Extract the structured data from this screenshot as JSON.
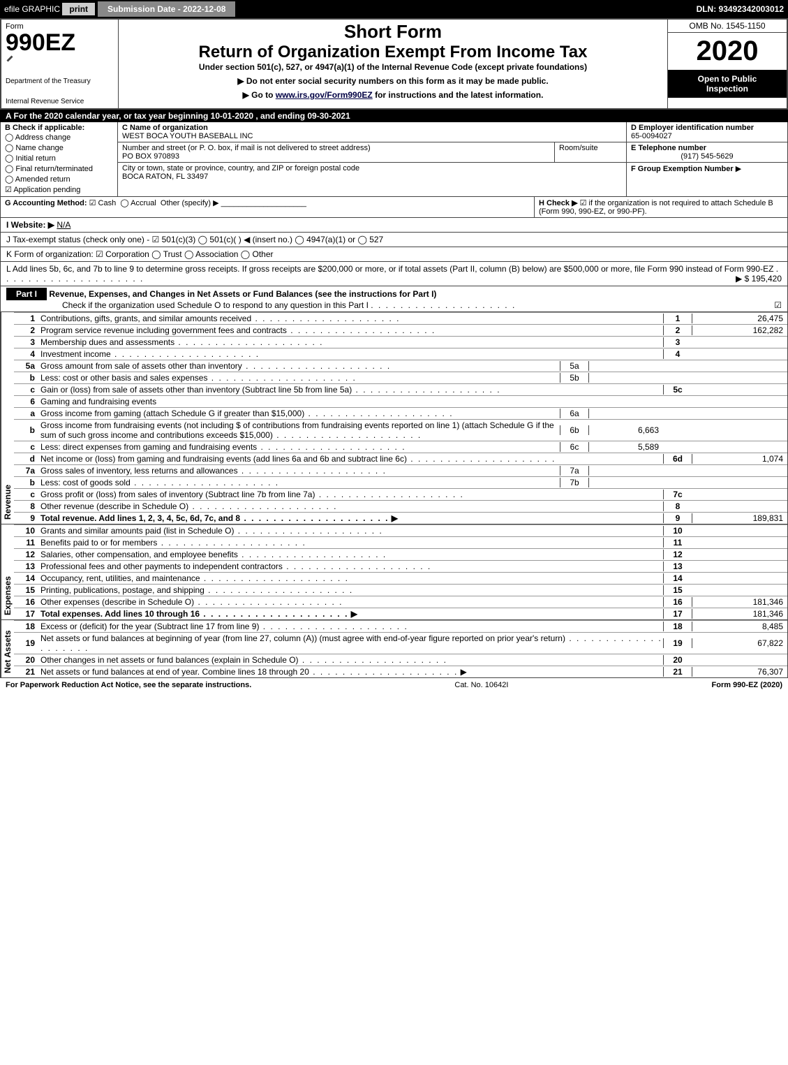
{
  "topbar": {
    "efile": "efile GRAPHIC",
    "print": "print",
    "sub_date_label": "Submission Date - 2022-12-08",
    "dln": "DLN: 93492342003012"
  },
  "header": {
    "form_word": "Form",
    "form_num": "990EZ",
    "irs1": "Department of the Treasury",
    "irs2": "Internal Revenue Service",
    "short_form": "Short Form",
    "main_title": "Return of Organization Exempt From Income Tax",
    "sub1": "Under section 501(c), 527, or 4947(a)(1) of the Internal Revenue Code (except private foundations)",
    "note1": "▶ Do not enter social security numbers on this form as it may be made public.",
    "note2_pre": "▶ Go to ",
    "note2_link": "www.irs.gov/Form990EZ",
    "note2_post": " for instructions and the latest information.",
    "omb": "OMB No. 1545-1150",
    "year": "2020",
    "inspect1": "Open to Public",
    "inspect2": "Inspection"
  },
  "period": "A For the 2020 calendar year, or tax year beginning 10-01-2020 , and ending 09-30-2021",
  "boxB": {
    "title": "B Check if applicable:",
    "opts": [
      "Address change",
      "Name change",
      "Initial return",
      "Final return/terminated",
      "Amended return",
      "Application pending"
    ],
    "checked_idx": 5
  },
  "boxC": {
    "label": "C Name of organization",
    "name": "WEST BOCA YOUTH BASEBALL INC",
    "addr_label": "Number and street (or P. O. box, if mail is not delivered to street address)",
    "addr": "PO BOX 970893",
    "room_label": "Room/suite",
    "city_label": "City or town, state or province, country, and ZIP or foreign postal code",
    "city": "BOCA RATON, FL  33497"
  },
  "boxD": {
    "label": "D Employer identification number",
    "val": "65-0094027"
  },
  "boxE": {
    "label": "E Telephone number",
    "val": "(917) 545-5629"
  },
  "boxF": {
    "label": "F Group Exemption Number",
    "arrow": "▶"
  },
  "gLine": {
    "label": "G Accounting Method:",
    "cash": "Cash",
    "accrual": "Accrual",
    "other": "Other (specify) ▶",
    "cash_chk": "☑",
    "accrual_chk": "◯"
  },
  "hLine": {
    "label": "H  Check ▶",
    "text": "if the organization is not required to attach Schedule B (Form 990, 990-EZ, or 990-PF).",
    "chk": "☑"
  },
  "iLine": {
    "label": "I Website: ▶",
    "val": "N/A"
  },
  "jLine": "J Tax-exempt status (check only one) -  ☑ 501(c)(3)  ◯ 501(c)(  ) ◀ (insert no.)  ◯ 4947(a)(1) or  ◯ 527",
  "kLine": "K Form of organization:  ☑ Corporation  ◯ Trust  ◯ Association  ◯ Other",
  "lLine": {
    "text": "L Add lines 5b, 6c, and 7b to line 9 to determine gross receipts. If gross receipts are $200,000 or more, or if total assets (Part II, column (B) below) are $500,000 or more, file Form 990 instead of Form 990-EZ",
    "val": "▶ $ 195,420"
  },
  "part1": {
    "tab": "Part I",
    "title": "Revenue, Expenses, and Changes in Net Assets or Fund Balances (see the instructions for Part I)",
    "check": "Check if the organization used Schedule O to respond to any question in this Part I",
    "chk": "☑"
  },
  "side_labels": {
    "revenue": "Revenue",
    "expenses": "Expenses",
    "netassets": "Net Assets"
  },
  "lines": {
    "1": {
      "n": "1",
      "d": "Contributions, gifts, grants, and similar amounts received",
      "b": "1",
      "v": "26,475"
    },
    "2": {
      "n": "2",
      "d": "Program service revenue including government fees and contracts",
      "b": "2",
      "v": "162,282"
    },
    "3": {
      "n": "3",
      "d": "Membership dues and assessments",
      "b": "3",
      "v": ""
    },
    "4": {
      "n": "4",
      "d": "Investment income",
      "b": "4",
      "v": ""
    },
    "5a": {
      "n": "5a",
      "d": "Gross amount from sale of assets other than inventory",
      "sb": "5a",
      "sv": ""
    },
    "5b": {
      "n": "b",
      "d": "Less: cost or other basis and sales expenses",
      "sb": "5b",
      "sv": ""
    },
    "5c": {
      "n": "c",
      "d": "Gain or (loss) from sale of assets other than inventory (Subtract line 5b from line 5a)",
      "b": "5c",
      "v": ""
    },
    "6": {
      "n": "6",
      "d": "Gaming and fundraising events"
    },
    "6a": {
      "n": "a",
      "d": "Gross income from gaming (attach Schedule G if greater than $15,000)",
      "sb": "6a",
      "sv": ""
    },
    "6b": {
      "n": "b",
      "d": "Gross income from fundraising events (not including $                       of contributions from fundraising events reported on line 1) (attach Schedule G if the sum of such gross income and contributions exceeds $15,000)",
      "sb": "6b",
      "sv": "6,663"
    },
    "6c": {
      "n": "c",
      "d": "Less: direct expenses from gaming and fundraising events",
      "sb": "6c",
      "sv": "5,589"
    },
    "6d": {
      "n": "d",
      "d": "Net income or (loss) from gaming and fundraising events (add lines 6a and 6b and subtract line 6c)",
      "b": "6d",
      "v": "1,074"
    },
    "7a": {
      "n": "7a",
      "d": "Gross sales of inventory, less returns and allowances",
      "sb": "7a",
      "sv": ""
    },
    "7b": {
      "n": "b",
      "d": "Less: cost of goods sold",
      "sb": "7b",
      "sv": ""
    },
    "7c": {
      "n": "c",
      "d": "Gross profit or (loss) from sales of inventory (Subtract line 7b from line 7a)",
      "b": "7c",
      "v": ""
    },
    "8": {
      "n": "8",
      "d": "Other revenue (describe in Schedule O)",
      "b": "8",
      "v": ""
    },
    "9": {
      "n": "9",
      "d": "Total revenue. Add lines 1, 2, 3, 4, 5c, 6d, 7c, and 8",
      "b": "9",
      "v": "189,831",
      "bold": true,
      "arrow": true
    },
    "10": {
      "n": "10",
      "d": "Grants and similar amounts paid (list in Schedule O)",
      "b": "10",
      "v": ""
    },
    "11": {
      "n": "11",
      "d": "Benefits paid to or for members",
      "b": "11",
      "v": ""
    },
    "12": {
      "n": "12",
      "d": "Salaries, other compensation, and employee benefits",
      "b": "12",
      "v": ""
    },
    "13": {
      "n": "13",
      "d": "Professional fees and other payments to independent contractors",
      "b": "13",
      "v": ""
    },
    "14": {
      "n": "14",
      "d": "Occupancy, rent, utilities, and maintenance",
      "b": "14",
      "v": ""
    },
    "15": {
      "n": "15",
      "d": "Printing, publications, postage, and shipping",
      "b": "15",
      "v": ""
    },
    "16": {
      "n": "16",
      "d": "Other expenses (describe in Schedule O)",
      "b": "16",
      "v": "181,346"
    },
    "17": {
      "n": "17",
      "d": "Total expenses. Add lines 10 through 16",
      "b": "17",
      "v": "181,346",
      "bold": true,
      "arrow": true
    },
    "18": {
      "n": "18",
      "d": "Excess or (deficit) for the year (Subtract line 17 from line 9)",
      "b": "18",
      "v": "8,485"
    },
    "19": {
      "n": "19",
      "d": "Net assets or fund balances at beginning of year (from line 27, column (A)) (must agree with end-of-year figure reported on prior year's return)",
      "b": "19",
      "v": "67,822"
    },
    "20": {
      "n": "20",
      "d": "Other changes in net assets or fund balances (explain in Schedule O)",
      "b": "20",
      "v": ""
    },
    "21": {
      "n": "21",
      "d": "Net assets or fund balances at end of year. Combine lines 18 through 20",
      "b": "21",
      "v": "76,307",
      "arrow": true
    }
  },
  "footer": {
    "left": "For Paperwork Reduction Act Notice, see the separate instructions.",
    "mid": "Cat. No. 10642I",
    "right": "Form 990-EZ (2020)"
  },
  "colors": {
    "black": "#000000",
    "white": "#ffffff",
    "gray_bg": "#bbbbbb",
    "btn_gray": "#cccccc",
    "submit_bg": "#888888"
  }
}
